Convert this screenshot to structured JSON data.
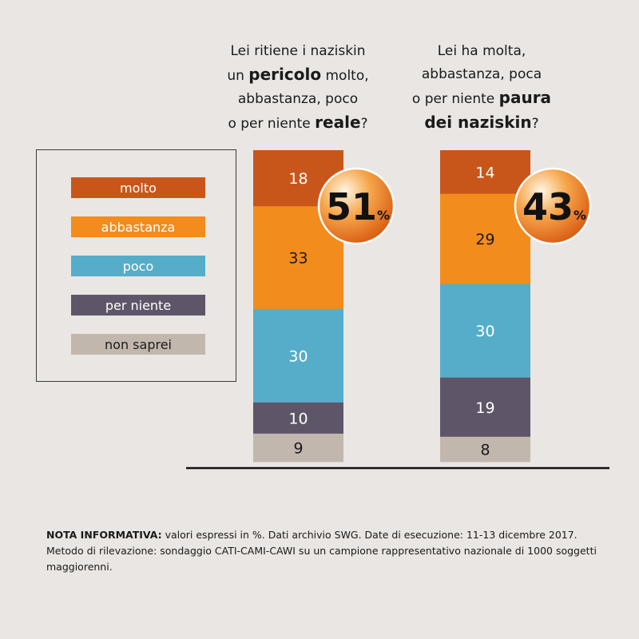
{
  "questions": {
    "left": {
      "pre": "Lei ritiene i naziskin",
      "line2_pre": "un ",
      "line2_bold": "pericolo",
      "line2_post": " molto,",
      "line3": "abbastanza, poco",
      "line4_pre": "o per niente ",
      "line4_bold": "reale",
      "line4_post": "?"
    },
    "right": {
      "line1": "Lei ha molta,",
      "line2": "abbastanza, poca",
      "line3_pre": "o per niente ",
      "line3_bold": "paura",
      "line4_bold": "dei naziskin",
      "line4_post": "?"
    }
  },
  "legend": [
    {
      "label": "molto",
      "color": "#c8561b"
    },
    {
      "label": "abbastanza",
      "color": "#f28c1c"
    },
    {
      "label": "poco",
      "color": "#56adc9"
    },
    {
      "label": "per niente",
      "color": "#5f5568"
    },
    {
      "label": "non saprei",
      "color": "#c2b7ad"
    }
  ],
  "chart_data": {
    "type": "bar",
    "stacked": true,
    "series": [
      {
        "name": "molto",
        "values": [
          18,
          14
        ],
        "color": "#c8561b"
      },
      {
        "name": "abbastanza",
        "values": [
          33,
          29
        ],
        "color": "#f28c1c"
      },
      {
        "name": "poco",
        "values": [
          30,
          30
        ],
        "color": "#56adc9"
      },
      {
        "name": "per niente",
        "values": [
          10,
          19
        ],
        "color": "#5f5568"
      },
      {
        "name": "non saprei",
        "values": [
          9,
          8
        ],
        "color": "#c2b7ad"
      }
    ],
    "badges": [
      {
        "value": "51",
        "unit": "%"
      },
      {
        "value": "43",
        "unit": "%"
      }
    ],
    "label_colors": [
      "#ffffff",
      "#1a1a1a",
      "#ffffff",
      "#ffffff",
      "#1a1a1a"
    ]
  },
  "note": {
    "bold": "NOTA INFORMATIVA:",
    "text": " valori espressi in %. Dati archivio SWG. Date di esecuzione: 11-13 dicembre 2017. Metodo di rilevazione: sondaggio CATI-CAMI-CAWI su un campione rappresentativo nazionale di 1000 soggetti maggiorenni."
  }
}
